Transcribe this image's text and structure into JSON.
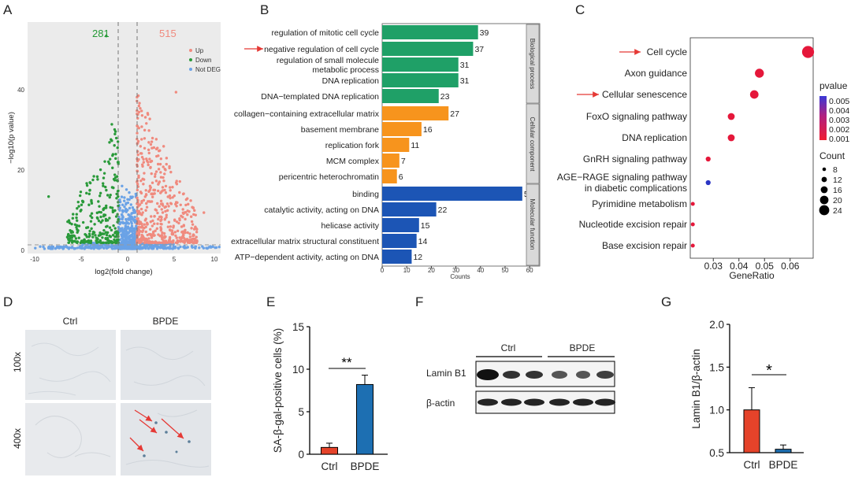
{
  "colors": {
    "up": "#f08a7e",
    "down": "#2a9a3a",
    "notdeg": "#6aa2e6",
    "bp": "#1fa067",
    "cc": "#f7941d",
    "mf": "#1c55b5",
    "ctrl": "#e5432a",
    "bpde": "#1d6fb2",
    "arrow": "#e53935"
  },
  "panels": {
    "A": {
      "letter": "A",
      "down_count": "281",
      "up_count": "515",
      "legend": [
        "Up",
        "Down",
        "Not DEG"
      ],
      "xlabel": "log2(fold change)",
      "ylabel": "−log10(p value)",
      "xticks": [
        "-10",
        "-5",
        "0",
        "5",
        "10"
      ],
      "yticks": [
        "0",
        "20",
        "40"
      ]
    },
    "B": {
      "letter": "B",
      "xlabel": "Counts",
      "xticks": [
        "0",
        "10",
        "20",
        "30",
        "40",
        "50",
        "60"
      ],
      "groups": [
        "Biological process",
        "Cellular component",
        "Molecular function"
      ]
    },
    "C": {
      "letter": "C",
      "xlabel": "GeneRatio",
      "xticks": [
        "0.03",
        "0.04",
        "0.05",
        "0.06"
      ],
      "legend_pvalue_title": "pvalue",
      "pvalue_ticks": [
        "0.005",
        "0.004",
        "0.003",
        "0.002",
        "0.001"
      ],
      "legend_count_title": "Count",
      "count_ticks": [
        "8",
        "12",
        "16",
        "20",
        "24"
      ]
    },
    "D": {
      "letter": "D",
      "col_labels": [
        "Ctrl",
        "BPDE"
      ],
      "row_labels": [
        "100x",
        "400x"
      ]
    },
    "E": {
      "letter": "E",
      "ylabel": "SA-β-gal-positive cells (%)",
      "yticks": [
        "0",
        "5",
        "10",
        "15"
      ],
      "sig": "**"
    },
    "F": {
      "letter": "F",
      "groups": [
        "Ctrl",
        "BPDE"
      ],
      "rows": [
        "Lamin B1",
        "β-actin"
      ]
    },
    "G": {
      "letter": "G",
      "ylabel": "Lamin B1/β-actin",
      "yticks": [
        "0.5",
        "1.0",
        "1.5",
        "2.0"
      ],
      "sig": "*"
    }
  },
  "chart_data": [
    {
      "type": "scatter",
      "panel": "A",
      "title": "",
      "xlabel": "log2(fold change)",
      "ylabel": "−log10(p value)",
      "xlim": [
        -11,
        11
      ],
      "ylim": [
        -1,
        57
      ],
      "series": [
        {
          "name": "Up",
          "count": 515
        },
        {
          "name": "Down",
          "count": 281
        },
        {
          "name": "Not DEG"
        }
      ],
      "annotations": [
        "281",
        "515"
      ]
    },
    {
      "type": "bar",
      "panel": "B",
      "xlabel": "Counts",
      "xlim": [
        0,
        60
      ],
      "categories": [
        "regulation of mitotic cell cycle",
        "negative regulation of cell cycle",
        "regulation of small molecule metabolic process",
        "DNA replication",
        "DNA−templated DNA replication",
        "collagen−containing extracellular matrix",
        "basement membrane",
        "replication fork",
        "MCM complex",
        "pericentric heterochromatin",
        "binding",
        "catalytic activity, acting on DNA",
        "helicase activity",
        "extracellular matrix structural constituent",
        "ATP−dependent activity, acting on DNA"
      ],
      "values": [
        39,
        37,
        31,
        31,
        23,
        27,
        16,
        11,
        7,
        6,
        57,
        22,
        15,
        14,
        12
      ],
      "groups": [
        "Biological process",
        "Biological process",
        "Biological process",
        "Biological process",
        "Biological process",
        "Cellular component",
        "Cellular component",
        "Cellular component",
        "Cellular component",
        "Cellular component",
        "Molecular function",
        "Molecular function",
        "Molecular function",
        "Molecular function",
        "Molecular function"
      ]
    },
    {
      "type": "scatter",
      "panel": "C",
      "xlabel": "GeneRatio",
      "xlim": [
        0.021,
        0.069
      ],
      "categories": [
        "Cell cycle",
        "Axon guidance",
        "Cellular senescence",
        "FoxO signaling pathway",
        "DNA replication",
        "GnRH signaling pathway",
        "AGE−RAGE signaling pathway in diabetic complications",
        "Pyrimidine metabolism",
        "Nucleotide excision repair",
        "Base excision repair"
      ],
      "x": [
        0.067,
        0.048,
        0.046,
        0.037,
        0.037,
        0.028,
        0.028,
        0.022,
        0.022,
        0.022
      ],
      "count": [
        24,
        18,
        17,
        14,
        14,
        10,
        10,
        8,
        8,
        8
      ],
      "pvalue": [
        0.0004,
        0.0008,
        0.0008,
        0.0008,
        0.0008,
        0.0008,
        0.0055,
        0.0008,
        0.0008,
        0.0008
      ]
    },
    {
      "type": "bar",
      "panel": "E",
      "ylabel": "SA-β-gal-positive cells (%)",
      "ylim": [
        0,
        15
      ],
      "categories": [
        "Ctrl",
        "BPDE"
      ],
      "values": [
        0.8,
        8.2
      ],
      "errors": [
        0.5,
        1.1
      ]
    },
    {
      "type": "bar",
      "panel": "G",
      "ylabel": "Lamin B1/β-actin",
      "ylim": [
        0.5,
        2.0
      ],
      "categories": [
        "Ctrl",
        "BPDE"
      ],
      "values": [
        1.0,
        0.54
      ],
      "errors": [
        0.26,
        0.05
      ]
    }
  ]
}
